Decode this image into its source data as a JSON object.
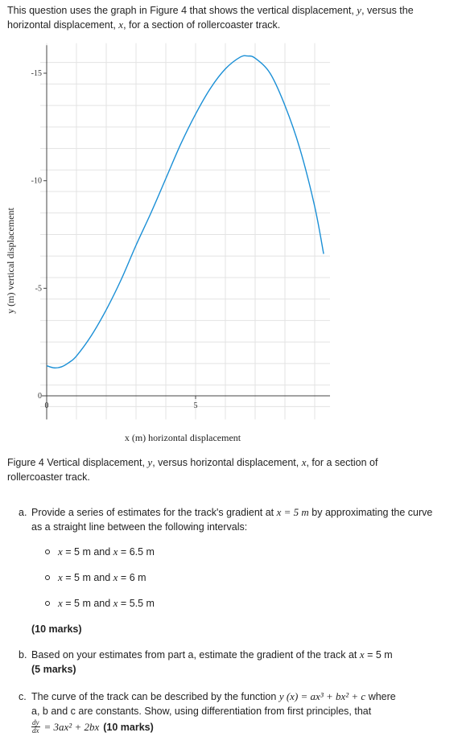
{
  "intro": {
    "line1_a": "This question uses the graph in Figure 4 that shows the vertical displacement,",
    "line1_var": "y",
    "line1_b": ", versus the",
    "line2_a": "horizontal displacement,",
    "line2_var": "x",
    "line2_b": ", for a section of rollercoaster track."
  },
  "chart_data": {
    "type": "line",
    "xlabel": "x (m) horizontal displacement",
    "ylabel": "y (m) vertical displacement",
    "xlim": [
      0,
      9.3
    ],
    "ylim": [
      -15.8,
      0.8
    ],
    "y_axis_reversed": true,
    "x_ticks": [
      "0",
      "5"
    ],
    "y_ticks": [
      "0",
      "-5",
      "-10",
      "-15"
    ],
    "grid": true,
    "series": [
      {
        "color": "#1a8fd6",
        "x": [
          0,
          0.25,
          0.5,
          0.75,
          1.0,
          1.5,
          2.0,
          2.5,
          3.0,
          3.5,
          4.0,
          4.5,
          5.0,
          5.5,
          6.0,
          6.5,
          6.75,
          7.0,
          7.5,
          8.0,
          8.5,
          9.0,
          9.3
        ],
        "y": [
          -1.4,
          -1.3,
          -1.35,
          -1.55,
          -1.85,
          -2.8,
          -4.0,
          -5.4,
          -7.0,
          -8.5,
          -10.1,
          -11.7,
          -13.1,
          -14.3,
          -15.2,
          -15.75,
          -15.8,
          -15.7,
          -15.0,
          -13.5,
          -11.5,
          -8.8,
          -6.6
        ]
      }
    ]
  },
  "caption": {
    "text_a": "Figure 4 Vertical displacement,",
    "var_y": "y",
    "text_b": ", versus horizontal displacement,",
    "var_x": "x",
    "text_c": ", for a section of rollercoaster track."
  },
  "questions": {
    "a": {
      "letter": "a.",
      "text_a": "Provide a series of estimates for the track's gradient at",
      "expr": "x = 5 m",
      "text_b": "by approximating the curve as a straight line between the following intervals:",
      "bullets": [
        {
          "v1": "x",
          "t1": " = 5 m and ",
          "v2": "x",
          "t2": " = 6.5 m"
        },
        {
          "v1": "x",
          "t1": " = 5 m and ",
          "v2": "x",
          "t2": " = 6 m"
        },
        {
          "v1": "x",
          "t1": " = 5 m and ",
          "v2": "x",
          "t2": " = 5.5 m"
        }
      ],
      "marks": "(10 marks)"
    },
    "b": {
      "letter": "b.",
      "text_a": "Based on your estimates from part a, estimate the gradient of the track at",
      "var": "x",
      "text_b": " = 5 m",
      "marks": "(5 marks)"
    },
    "c": {
      "letter": "c.",
      "text_a": "The curve of the track can be described by the function",
      "func": "y (x) = ax³ + bx² + c",
      "text_b": "where",
      "text_c": "a, b and c are constants. Show, using differentiation from first principles, that",
      "deriv_num": "dy",
      "deriv_den": "dx",
      "deriv_rhs": "= 3ax² + 2bx",
      "marks": "(10 marks)"
    }
  }
}
